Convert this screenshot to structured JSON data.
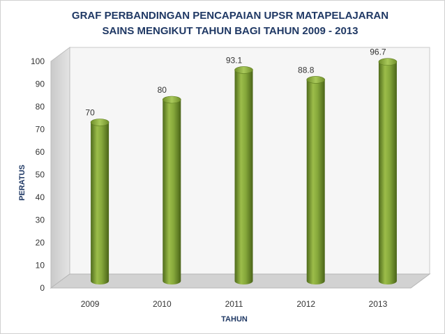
{
  "chart_data": {
    "type": "bar",
    "title": [
      "GRAF PERBANDINGAN PENCAPAIAN UPSR MATAPELAJARAN",
      "SAINS MENGIKUT TAHUN BAGI TAHUN 2009 - 2013"
    ],
    "xlabel": "TAHUN",
    "ylabel": "PERATUS",
    "categories": [
      "2009",
      "2010",
      "2011",
      "2012",
      "2013"
    ],
    "values": [
      70,
      80,
      93.1,
      88.8,
      96.7
    ],
    "value_labels": [
      "70",
      "80",
      "93.1",
      "88.8",
      "96.7"
    ],
    "ylim": [
      0,
      100
    ],
    "yticks": [
      "0",
      "10",
      "20",
      "30",
      "40",
      "50",
      "60",
      "70",
      "80",
      "90",
      "100"
    ],
    "bar_color": "#7a9a34",
    "grid": false,
    "legend": "none"
  }
}
